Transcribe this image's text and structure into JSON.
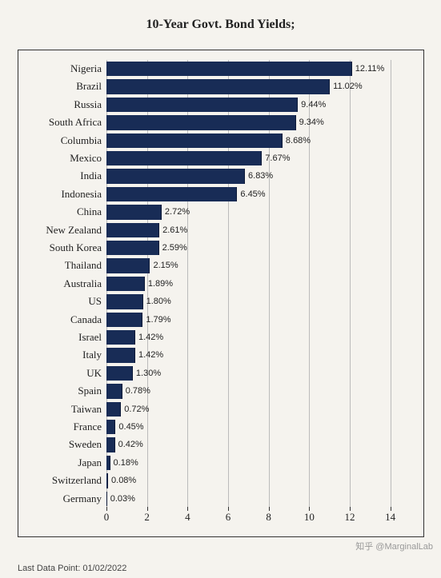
{
  "chart": {
    "type": "bar-horizontal",
    "title": "10-Year Govt. Bond Yields;",
    "title_fontsize": 16,
    "background_color": "#f5f3ee",
    "bar_color": "#182c56",
    "grid_color": "#bbbbbb",
    "text_color": "#222222",
    "xlim_min": 0,
    "xlim_max": 15,
    "xticks": [
      0,
      2,
      4,
      6,
      8,
      10,
      12,
      14
    ],
    "bar_height_ratio": 0.82,
    "categories": [
      "Nigeria",
      "Brazil",
      "Russia",
      "South Africa",
      "Columbia",
      "Mexico",
      "India",
      "Indonesia",
      "China",
      "New Zealand",
      "South Korea",
      "Thailand",
      "Australia",
      "US",
      "Canada",
      "Israel",
      "Italy",
      "UK",
      "Spain",
      "Taiwan",
      "France",
      "Sweden",
      "Japan",
      "Switzerland",
      "Germany"
    ],
    "values": [
      12.11,
      11.02,
      9.44,
      9.34,
      8.68,
      7.67,
      6.83,
      6.45,
      2.72,
      2.61,
      2.59,
      2.15,
      1.89,
      1.8,
      1.79,
      1.42,
      1.42,
      1.3,
      0.78,
      0.72,
      0.45,
      0.42,
      0.18,
      0.08,
      0.03
    ],
    "value_labels": [
      "12.11%",
      "11.02%",
      "9.44%",
      "9.34%",
      "8.68%",
      "7.67%",
      "6.83%",
      "6.45%",
      "2.72%",
      "2.61%",
      "2.59%",
      "2.15%",
      "1.89%",
      "1.80%",
      "1.79%",
      "1.42%",
      "1.42%",
      "1.30%",
      "0.78%",
      "0.72%",
      "0.45%",
      "0.42%",
      "0.18%",
      "0.08%",
      "0.03%"
    ],
    "label_fontsize": 13,
    "value_fontsize": 11
  },
  "footer": "Last Data Point: 01/02/2022",
  "watermark": "知乎 @MarginalLab"
}
